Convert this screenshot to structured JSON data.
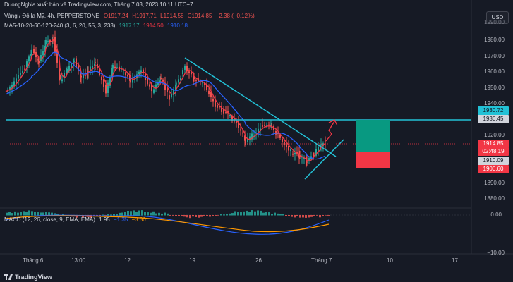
{
  "watermark_text": "DuongNghia xuất bản về TradingView.com, Tháng 7 03, 2023 10:11 UTC+7",
  "symbol": {
    "name": "Vàng / Đô la Mỹ, 4h, PEPPERSTONE",
    "open": "O1917.24",
    "high": "H1917.71",
    "low": "L1914.58",
    "close": "C1914.85",
    "change": "−2.38 (−0.12%)"
  },
  "ma_indicator": {
    "label": "MA5-10-20-60-120-240 (3, 6, 20, 55, 3, 233)",
    "value_1": "1917.17",
    "value_2": "1914.50",
    "value_3": "1910.18"
  },
  "currency_button": "USD",
  "price_axis": [
    "1990.00",
    "1980.00",
    "1970.00",
    "1960.00",
    "1950.00",
    "1940.00",
    "1920.00",
    "1890.00",
    "1880.00"
  ],
  "price_tags": {
    "level_high": "1930.72",
    "level_high_2": "1930.45",
    "current": "1914.85",
    "countdown": "02:48:19",
    "level_mid": "1910.09",
    "level_low": "1900.60"
  },
  "macd": {
    "label": "MACD (12, 26, close, 9, EMA, EMA)",
    "v1": "1.95",
    "v2": "−1.35",
    "v3": "−3.30",
    "axis": [
      "0.00",
      "−10.00"
    ]
  },
  "time_axis": [
    "Tháng 6",
    "13:00",
    "12",
    "19",
    "26",
    "Tháng 7",
    "10",
    "17"
  ],
  "logo_text": "TradingView",
  "colors": {
    "bg": "#161a25",
    "up": "#26a69a",
    "down": "#ef5350",
    "cyan_line": "#22c1d6",
    "ma_red": "#f23645",
    "ma_blue": "#2962ff",
    "green_box": "#089981",
    "red_box": "#f23645"
  }
}
